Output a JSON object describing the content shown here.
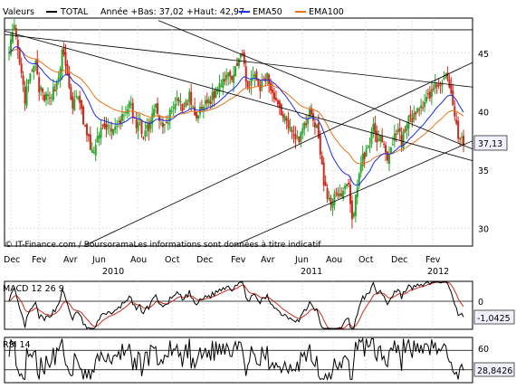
{
  "colors": {
    "up": "#2aa62a",
    "down": "#cc2a1e",
    "ema50": "#1a2fe0",
    "ema100": "#e8731a",
    "grid": "#cfcfcf",
    "badge_bg": "#f1f1ff",
    "macd_line": "#000000",
    "macd_signal": "#cc2a1e"
  },
  "legend": {
    "valeurs": "Valeurs",
    "total": "TOTAL",
    "range": "Année +Bas: 37,02 +Haut: 42,97",
    "ema50": "EMA50",
    "ema100": "EMA100"
  },
  "watermark": "© IT-Finance.com / BoursoramaLes informations sont données à titre indicatif",
  "chart_data": [
    {
      "type": "candlestick",
      "name": "TOTAL",
      "ylim": [
        28.5,
        48
      ],
      "yticks": [
        "30",
        "35",
        "40",
        "45"
      ],
      "ytick_values": [
        30,
        35,
        40,
        45
      ],
      "month_labels": [
        "Dec",
        "Fev",
        "Avr",
        "Jun",
        "Aou",
        "Oct",
        "Dec",
        "Fev",
        "Avr",
        "Jun",
        "Aou",
        "Oct",
        "Dec",
        "Fev"
      ],
      "year_labels": [
        "2010",
        "2011",
        "2012"
      ],
      "last_value": "37,13",
      "anchors": [
        [
          0,
          45.5
        ],
        [
          3,
          47
        ],
        [
          6,
          44
        ],
        [
          9,
          41
        ],
        [
          11,
          42.5
        ],
        [
          13,
          43.5
        ],
        [
          15,
          44
        ],
        [
          17,
          42
        ],
        [
          20,
          41
        ],
        [
          23,
          41.5
        ],
        [
          26,
          42
        ],
        [
          28,
          43
        ],
        [
          30,
          45
        ],
        [
          32,
          44
        ],
        [
          34,
          42
        ],
        [
          36,
          40.5
        ],
        [
          38,
          41
        ],
        [
          40,
          41
        ],
        [
          42,
          39
        ],
        [
          44,
          38
        ],
        [
          46,
          37
        ],
        [
          48,
          36.5
        ],
        [
          50,
          37.5
        ],
        [
          52,
          39
        ],
        [
          54,
          38.5
        ],
        [
          56,
          39
        ],
        [
          58,
          38
        ],
        [
          60,
          38.5
        ],
        [
          62,
          39
        ],
        [
          64,
          39.5
        ],
        [
          66,
          40
        ],
        [
          68,
          41
        ],
        [
          70,
          39.5
        ],
        [
          72,
          38.5
        ],
        [
          74,
          39
        ],
        [
          76,
          38
        ],
        [
          78,
          38.5
        ],
        [
          80,
          39
        ],
        [
          82,
          40.5
        ],
        [
          84,
          40
        ],
        [
          86,
          39
        ],
        [
          88,
          38.5
        ],
        [
          90,
          39.5
        ],
        [
          92,
          40
        ],
        [
          94,
          40.5
        ],
        [
          96,
          41
        ],
        [
          98,
          40
        ],
        [
          100,
          40.5
        ],
        [
          102,
          41.5
        ],
        [
          104,
          40
        ],
        [
          106,
          39.5
        ],
        [
          108,
          40
        ],
        [
          110,
          40.5
        ],
        [
          112,
          41
        ],
        [
          114,
          41
        ],
        [
          116,
          41.5
        ],
        [
          118,
          42
        ],
        [
          120,
          42.5
        ],
        [
          122,
          43
        ],
        [
          124,
          43.5
        ],
        [
          126,
          43
        ],
        [
          128,
          44
        ],
        [
          130,
          44.5
        ],
        [
          131,
          45
        ],
        [
          132,
          44.5
        ],
        [
          134,
          43
        ],
        [
          136,
          42
        ],
        [
          138,
          43
        ],
        [
          140,
          42.5
        ],
        [
          142,
          42
        ],
        [
          144,
          42.5
        ],
        [
          146,
          43
        ],
        [
          148,
          42
        ],
        [
          150,
          41.5
        ],
        [
          152,
          40.5
        ],
        [
          154,
          40
        ],
        [
          156,
          39.5
        ],
        [
          158,
          39
        ],
        [
          160,
          38.5
        ],
        [
          162,
          38
        ],
        [
          164,
          37.5
        ],
        [
          166,
          38.5
        ],
        [
          168,
          39
        ],
        [
          170,
          40
        ],
        [
          172,
          39.5
        ],
        [
          174,
          38.5
        ],
        [
          176,
          36.5
        ],
        [
          178,
          34
        ],
        [
          180,
          32.5
        ],
        [
          182,
          32
        ],
        [
          184,
          33
        ],
        [
          186,
          32.5
        ],
        [
          188,
          33
        ],
        [
          190,
          34
        ],
        [
          192,
          33.5
        ],
        [
          194,
          30.5
        ],
        [
          196,
          33
        ],
        [
          198,
          34.5
        ],
        [
          200,
          36
        ],
        [
          202,
          36.5
        ],
        [
          204,
          37.5
        ],
        [
          206,
          38.5
        ],
        [
          208,
          37.5
        ],
        [
          210,
          38
        ],
        [
          212,
          37
        ],
        [
          214,
          36
        ],
        [
          216,
          37
        ],
        [
          218,
          38
        ],
        [
          220,
          38.5
        ],
        [
          222,
          37.5
        ],
        [
          224,
          38.5
        ],
        [
          226,
          39.5
        ],
        [
          228,
          39
        ],
        [
          230,
          40
        ],
        [
          232,
          40.5
        ],
        [
          234,
          40
        ],
        [
          236,
          41
        ],
        [
          238,
          41.5
        ],
        [
          240,
          42
        ],
        [
          242,
          42.5
        ],
        [
          244,
          42
        ],
        [
          246,
          42.5
        ],
        [
          248,
          43
        ],
        [
          250,
          42
        ],
        [
          252,
          40
        ],
        [
          254,
          38
        ],
        [
          256,
          37.5
        ],
        [
          257,
          37.13
        ]
      ]
    },
    {
      "type": "line",
      "name": "MACD 12 26 9",
      "yticks": [
        "0"
      ],
      "last_value": "-1,0425"
    },
    {
      "type": "line",
      "name": "RSI 14",
      "yticks": [
        "60"
      ],
      "reference_level": 30,
      "last_value": "28,8426"
    }
  ]
}
